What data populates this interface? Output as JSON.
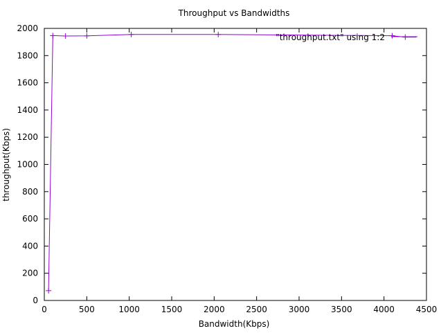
{
  "chart_data": {
    "type": "line",
    "title": "Throughput vs Bandwidths",
    "xlabel": "Bandwidth(Kbps)",
    "ylabel": "throughput(Kbps)",
    "xlim": [
      0,
      4500
    ],
    "ylim": [
      0,
      2000
    ],
    "xticks": [
      0,
      500,
      1000,
      1500,
      2000,
      2500,
      3000,
      3500,
      4000,
      4500
    ],
    "yticks": [
      0,
      200,
      400,
      600,
      800,
      1000,
      1200,
      1400,
      1600,
      1800,
      2000
    ],
    "grid": false,
    "legend_position": "top-right",
    "series": [
      {
        "name": "\"throughput.txt\" using 1:2",
        "color": "#9400d3",
        "marker": "plus",
        "x": [
          50,
          100,
          250,
          500,
          1024,
          2048,
          4096,
          4250
        ],
        "y": [
          72,
          1947,
          1944,
          1945,
          1955,
          1955,
          1946,
          1936
        ]
      }
    ],
    "line_extends_to_x": 4380,
    "line_end_y": 1936
  }
}
